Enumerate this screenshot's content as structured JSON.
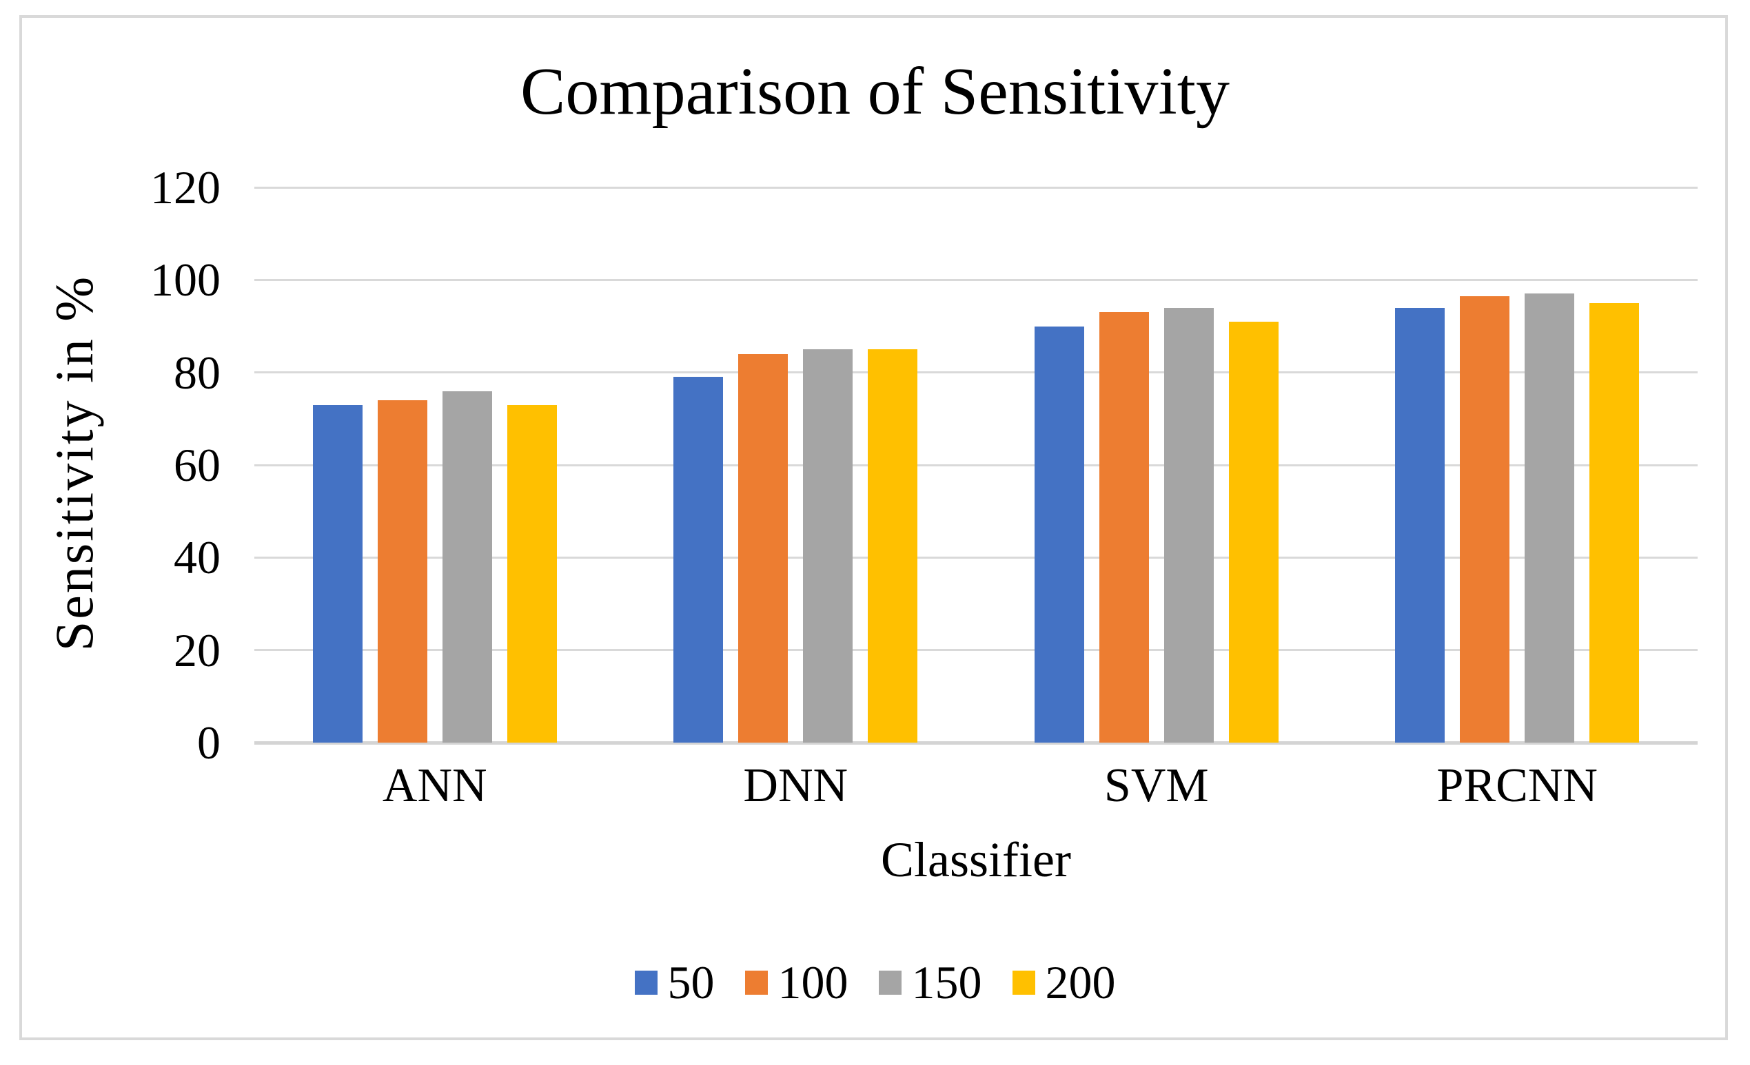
{
  "chart_data": {
    "type": "bar",
    "title": "Comparison of Sensitivity",
    "xlabel": "Classifier",
    "ylabel": "Sensitivity in %",
    "categories": [
      "ANN",
      "DNN",
      "SVM",
      "PRCNN"
    ],
    "series": [
      {
        "name": "50",
        "color": "#4472C4",
        "values": [
          73,
          79,
          90,
          94
        ]
      },
      {
        "name": "100",
        "color": "#ED7D31",
        "values": [
          74,
          84,
          93,
          96.5
        ]
      },
      {
        "name": "150",
        "color": "#A5A5A5",
        "values": [
          76,
          85,
          94,
          97
        ]
      },
      {
        "name": "200",
        "color": "#FFC000",
        "values": [
          73,
          85,
          91,
          95
        ]
      }
    ],
    "ylim": [
      0,
      120
    ],
    "yticks": [
      0,
      20,
      40,
      60,
      80,
      100,
      120
    ],
    "grid": "horizontal",
    "legend_position": "bottom",
    "gridline_color": "#D9D9D9",
    "frame_color": "#D9D9D9",
    "background_color": "#FFFFFF",
    "text_color": "#000000"
  }
}
